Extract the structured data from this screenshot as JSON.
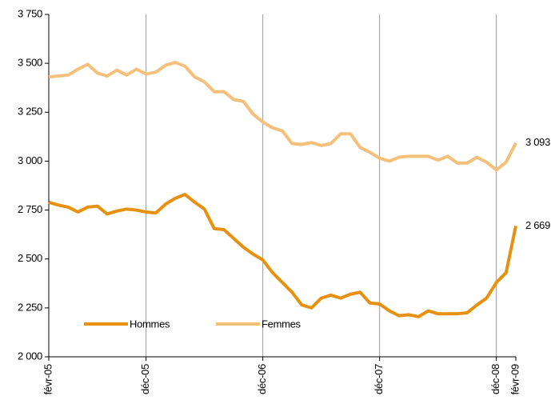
{
  "chart_data": {
    "type": "line",
    "categories": [
      "févr-05",
      null,
      null,
      null,
      null,
      null,
      null,
      null,
      null,
      null,
      "déc-05",
      null,
      null,
      null,
      null,
      null,
      null,
      null,
      null,
      null,
      null,
      null,
      "déc-06",
      null,
      null,
      null,
      null,
      null,
      null,
      null,
      null,
      null,
      null,
      null,
      "déc-07",
      null,
      null,
      null,
      null,
      null,
      null,
      null,
      null,
      null,
      null,
      null,
      "déc-08",
      null,
      "févr-09"
    ],
    "series": [
      {
        "name": "Hommes",
        "color": "#e8900f",
        "values": [
          2790,
          2775,
          2765,
          2740,
          2765,
          2770,
          2730,
          2745,
          2755,
          2750,
          2740,
          2735,
          2780,
          2810,
          2830,
          2790,
          2755,
          2655,
          2650,
          2605,
          2560,
          2525,
          2495,
          2430,
          2380,
          2330,
          2265,
          2250,
          2300,
          2315,
          2300,
          2320,
          2330,
          2275,
          2270,
          2235,
          2210,
          2215,
          2205,
          2235,
          2220,
          2220,
          2220,
          2225,
          2265,
          2300,
          2380,
          2430,
          2669
        ],
        "value_labels": [
          null,
          null,
          null,
          null,
          null,
          null,
          null,
          null,
          null,
          null,
          null,
          null,
          null,
          null,
          null,
          null,
          null,
          null,
          null,
          null,
          null,
          null,
          null,
          null,
          null,
          null,
          null,
          null,
          null,
          null,
          null,
          null,
          null,
          null,
          null,
          null,
          null,
          null,
          null,
          null,
          null,
          null,
          null,
          null,
          null,
          null,
          null,
          null,
          "2 669"
        ]
      },
      {
        "name": "Femmes",
        "color": "#f5c07a",
        "values": [
          3430,
          3435,
          3440,
          3470,
          3495,
          3450,
          3435,
          3465,
          3440,
          3470,
          3445,
          3455,
          3490,
          3505,
          3485,
          3430,
          3405,
          3355,
          3355,
          3315,
          3305,
          3240,
          3200,
          3170,
          3155,
          3090,
          3085,
          3095,
          3080,
          3090,
          3140,
          3140,
          3070,
          3045,
          3015,
          3000,
          3020,
          3025,
          3025,
          3025,
          3005,
          3025,
          2990,
          2990,
          3020,
          2995,
          2955,
          2995,
          3093
        ],
        "value_labels": [
          null,
          null,
          null,
          null,
          null,
          null,
          null,
          null,
          null,
          null,
          null,
          null,
          null,
          null,
          null,
          null,
          null,
          null,
          null,
          null,
          null,
          null,
          null,
          null,
          null,
          null,
          null,
          null,
          null,
          null,
          null,
          null,
          null,
          null,
          null,
          null,
          null,
          null,
          null,
          null,
          null,
          null,
          null,
          null,
          null,
          null,
          null,
          null,
          "3 093"
        ]
      }
    ],
    "ylim": [
      2000,
      3750
    ],
    "yticks": [
      {
        "value": 2000,
        "label": "2 000"
      },
      {
        "value": 2250,
        "label": "2 250"
      },
      {
        "value": 2500,
        "label": "2 500"
      },
      {
        "value": 2750,
        "label": "2 750"
      },
      {
        "value": 3000,
        "label": "3 000"
      },
      {
        "value": 3250,
        "label": "3 250"
      },
      {
        "value": 3500,
        "label": "3 500"
      },
      {
        "value": 3750,
        "label": "3 750"
      }
    ],
    "grid": "x",
    "legend": "lower left"
  }
}
